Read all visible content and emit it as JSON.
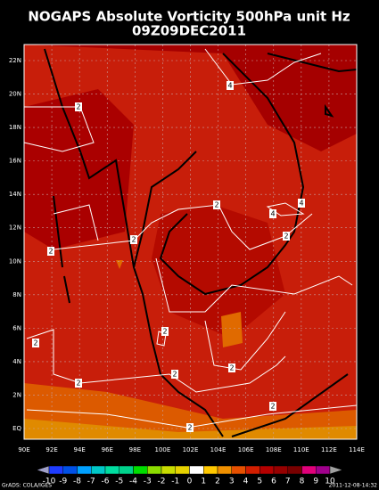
{
  "header": {
    "title": "NOGAPS Absolute Vorticity 500hPa unit Hz",
    "subtitle": "09Z09DEC2011"
  },
  "lat_labels": [
    "22N",
    "20N",
    "18N",
    "16N",
    "14N",
    "12N",
    "10N",
    "8N",
    "6N",
    "4N",
    "2N",
    "EQ"
  ],
  "lon_labels": [
    "90E",
    "92E",
    "94E",
    "96E",
    "98E",
    "100E",
    "102E",
    "104E",
    "106E",
    "108E",
    "110E",
    "112E",
    "114E"
  ],
  "contour_labels": [
    "4",
    "2",
    "2",
    "2",
    "2",
    "4",
    "4",
    "2",
    "2",
    "2",
    "2",
    "2",
    "2",
    "2",
    "2"
  ],
  "colorbar": {
    "labels": [
      -10,
      -9,
      -8,
      -7,
      -6,
      -5,
      -4,
      -3,
      -2,
      -1,
      0,
      1,
      2,
      3,
      4,
      5,
      6,
      7,
      8,
      9,
      10
    ],
    "colors": [
      "#a0a0c8",
      "#1e3cff",
      "#0050e6",
      "#00a0ff",
      "#00c8c8",
      "#00dca0",
      "#00d28c",
      "#00dc00",
      "#8cdc00",
      "#c8dc00",
      "#e6d200",
      "#ffffff",
      "#ffc800",
      "#f09000",
      "#e65000",
      "#d21e00",
      "#b40000",
      "#960000",
      "#780000",
      "#e0007a",
      "#a0008c",
      "#a0a0a0"
    ]
  },
  "footer": {
    "left": "GrADS: COLA/IGES",
    "right": "2011-12-08-14:32"
  }
}
